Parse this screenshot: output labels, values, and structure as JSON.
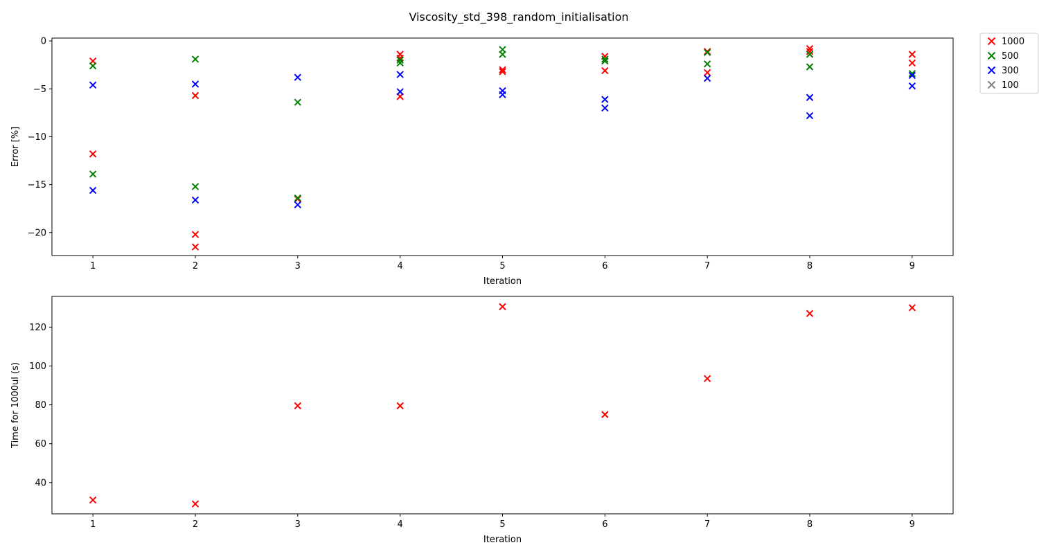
{
  "figure": {
    "title": "Viscosity_std_398_random_initialisation"
  },
  "legend": {
    "placement": "outside-top-right",
    "items": [
      {
        "label": "1000",
        "color": "#ff0000"
      },
      {
        "label": "500",
        "color": "#008000"
      },
      {
        "label": "300",
        "color": "#0000ff"
      },
      {
        "label": "100",
        "color": "#808080"
      }
    ]
  },
  "chart_data": [
    {
      "type": "scatter",
      "marker": "x",
      "xlabel": "Iteration",
      "ylabel": "Error [%]",
      "xlim": [
        0.6,
        9.4
      ],
      "ylim": [
        -22.4,
        0.3
      ],
      "xticks": [
        1,
        2,
        3,
        4,
        5,
        6,
        7,
        8,
        9
      ],
      "yticks": [
        0,
        -5,
        -10,
        -15,
        -20
      ],
      "ytick_labels": [
        "0",
        "−5",
        "−10",
        "−15",
        "−20"
      ],
      "grid": false,
      "series": [
        {
          "name": "1000",
          "color": "#ff0000",
          "points": [
            [
              1,
              -2.1
            ],
            [
              1,
              -11.8
            ],
            [
              2,
              -5.7
            ],
            [
              2,
              -20.2
            ],
            [
              2,
              -21.5
            ],
            [
              3,
              -16.5
            ],
            [
              4,
              -1.4
            ],
            [
              4,
              -1.8
            ],
            [
              4,
              -5.8
            ],
            [
              5,
              -3.0
            ],
            [
              5,
              -3.2
            ],
            [
              6,
              -1.6
            ],
            [
              6,
              -3.1
            ],
            [
              7,
              -1.1
            ],
            [
              7,
              -3.3
            ],
            [
              8,
              -0.8
            ],
            [
              8,
              -1.1
            ],
            [
              9,
              -1.4
            ],
            [
              9,
              -2.3
            ]
          ]
        },
        {
          "name": "500",
          "color": "#008000",
          "points": [
            [
              1,
              -2.6
            ],
            [
              1,
              -13.9
            ],
            [
              2,
              -1.9
            ],
            [
              2,
              -15.2
            ],
            [
              3,
              -6.4
            ],
            [
              3,
              -16.4
            ],
            [
              4,
              -2.0
            ],
            [
              4,
              -2.3
            ],
            [
              5,
              -0.9
            ],
            [
              5,
              -1.4
            ],
            [
              6,
              -1.9
            ],
            [
              6,
              -2.1
            ],
            [
              7,
              -1.2
            ],
            [
              7,
              -2.4
            ],
            [
              8,
              -1.4
            ],
            [
              8,
              -2.7
            ],
            [
              9,
              -3.4
            ]
          ]
        },
        {
          "name": "300",
          "color": "#0000ff",
          "points": [
            [
              1,
              -4.6
            ],
            [
              1,
              -15.6
            ],
            [
              2,
              -4.5
            ],
            [
              2,
              -16.6
            ],
            [
              3,
              -3.8
            ],
            [
              3,
              -17.1
            ],
            [
              4,
              -3.5
            ],
            [
              4,
              -5.3
            ],
            [
              5,
              -5.2
            ],
            [
              5,
              -5.6
            ],
            [
              6,
              -6.1
            ],
            [
              6,
              -7.0
            ],
            [
              7,
              -3.9
            ],
            [
              8,
              -5.9
            ],
            [
              8,
              -7.8
            ],
            [
              9,
              -3.6
            ],
            [
              9,
              -4.7
            ]
          ]
        },
        {
          "name": "100",
          "color": "#808080",
          "points": []
        }
      ]
    },
    {
      "type": "scatter",
      "marker": "x",
      "xlabel": "Iteration",
      "ylabel": "Time for 1000ul (s)",
      "xlim": [
        0.6,
        9.4
      ],
      "ylim": [
        23.9,
        135.8
      ],
      "xticks": [
        1,
        2,
        3,
        4,
        5,
        6,
        7,
        8,
        9
      ],
      "yticks": [
        40,
        60,
        80,
        100,
        120
      ],
      "ytick_labels": [
        "40",
        "60",
        "80",
        "100",
        "120"
      ],
      "grid": false,
      "series": [
        {
          "name": "1000",
          "color": "#ff0000",
          "points": [
            [
              1,
              31
            ],
            [
              2,
              29
            ],
            [
              3,
              79.5
            ],
            [
              4,
              79.5
            ],
            [
              5,
              130.5
            ],
            [
              6,
              75
            ],
            [
              7,
              93.5
            ],
            [
              8,
              127
            ],
            [
              9,
              130
            ]
          ]
        }
      ]
    }
  ]
}
